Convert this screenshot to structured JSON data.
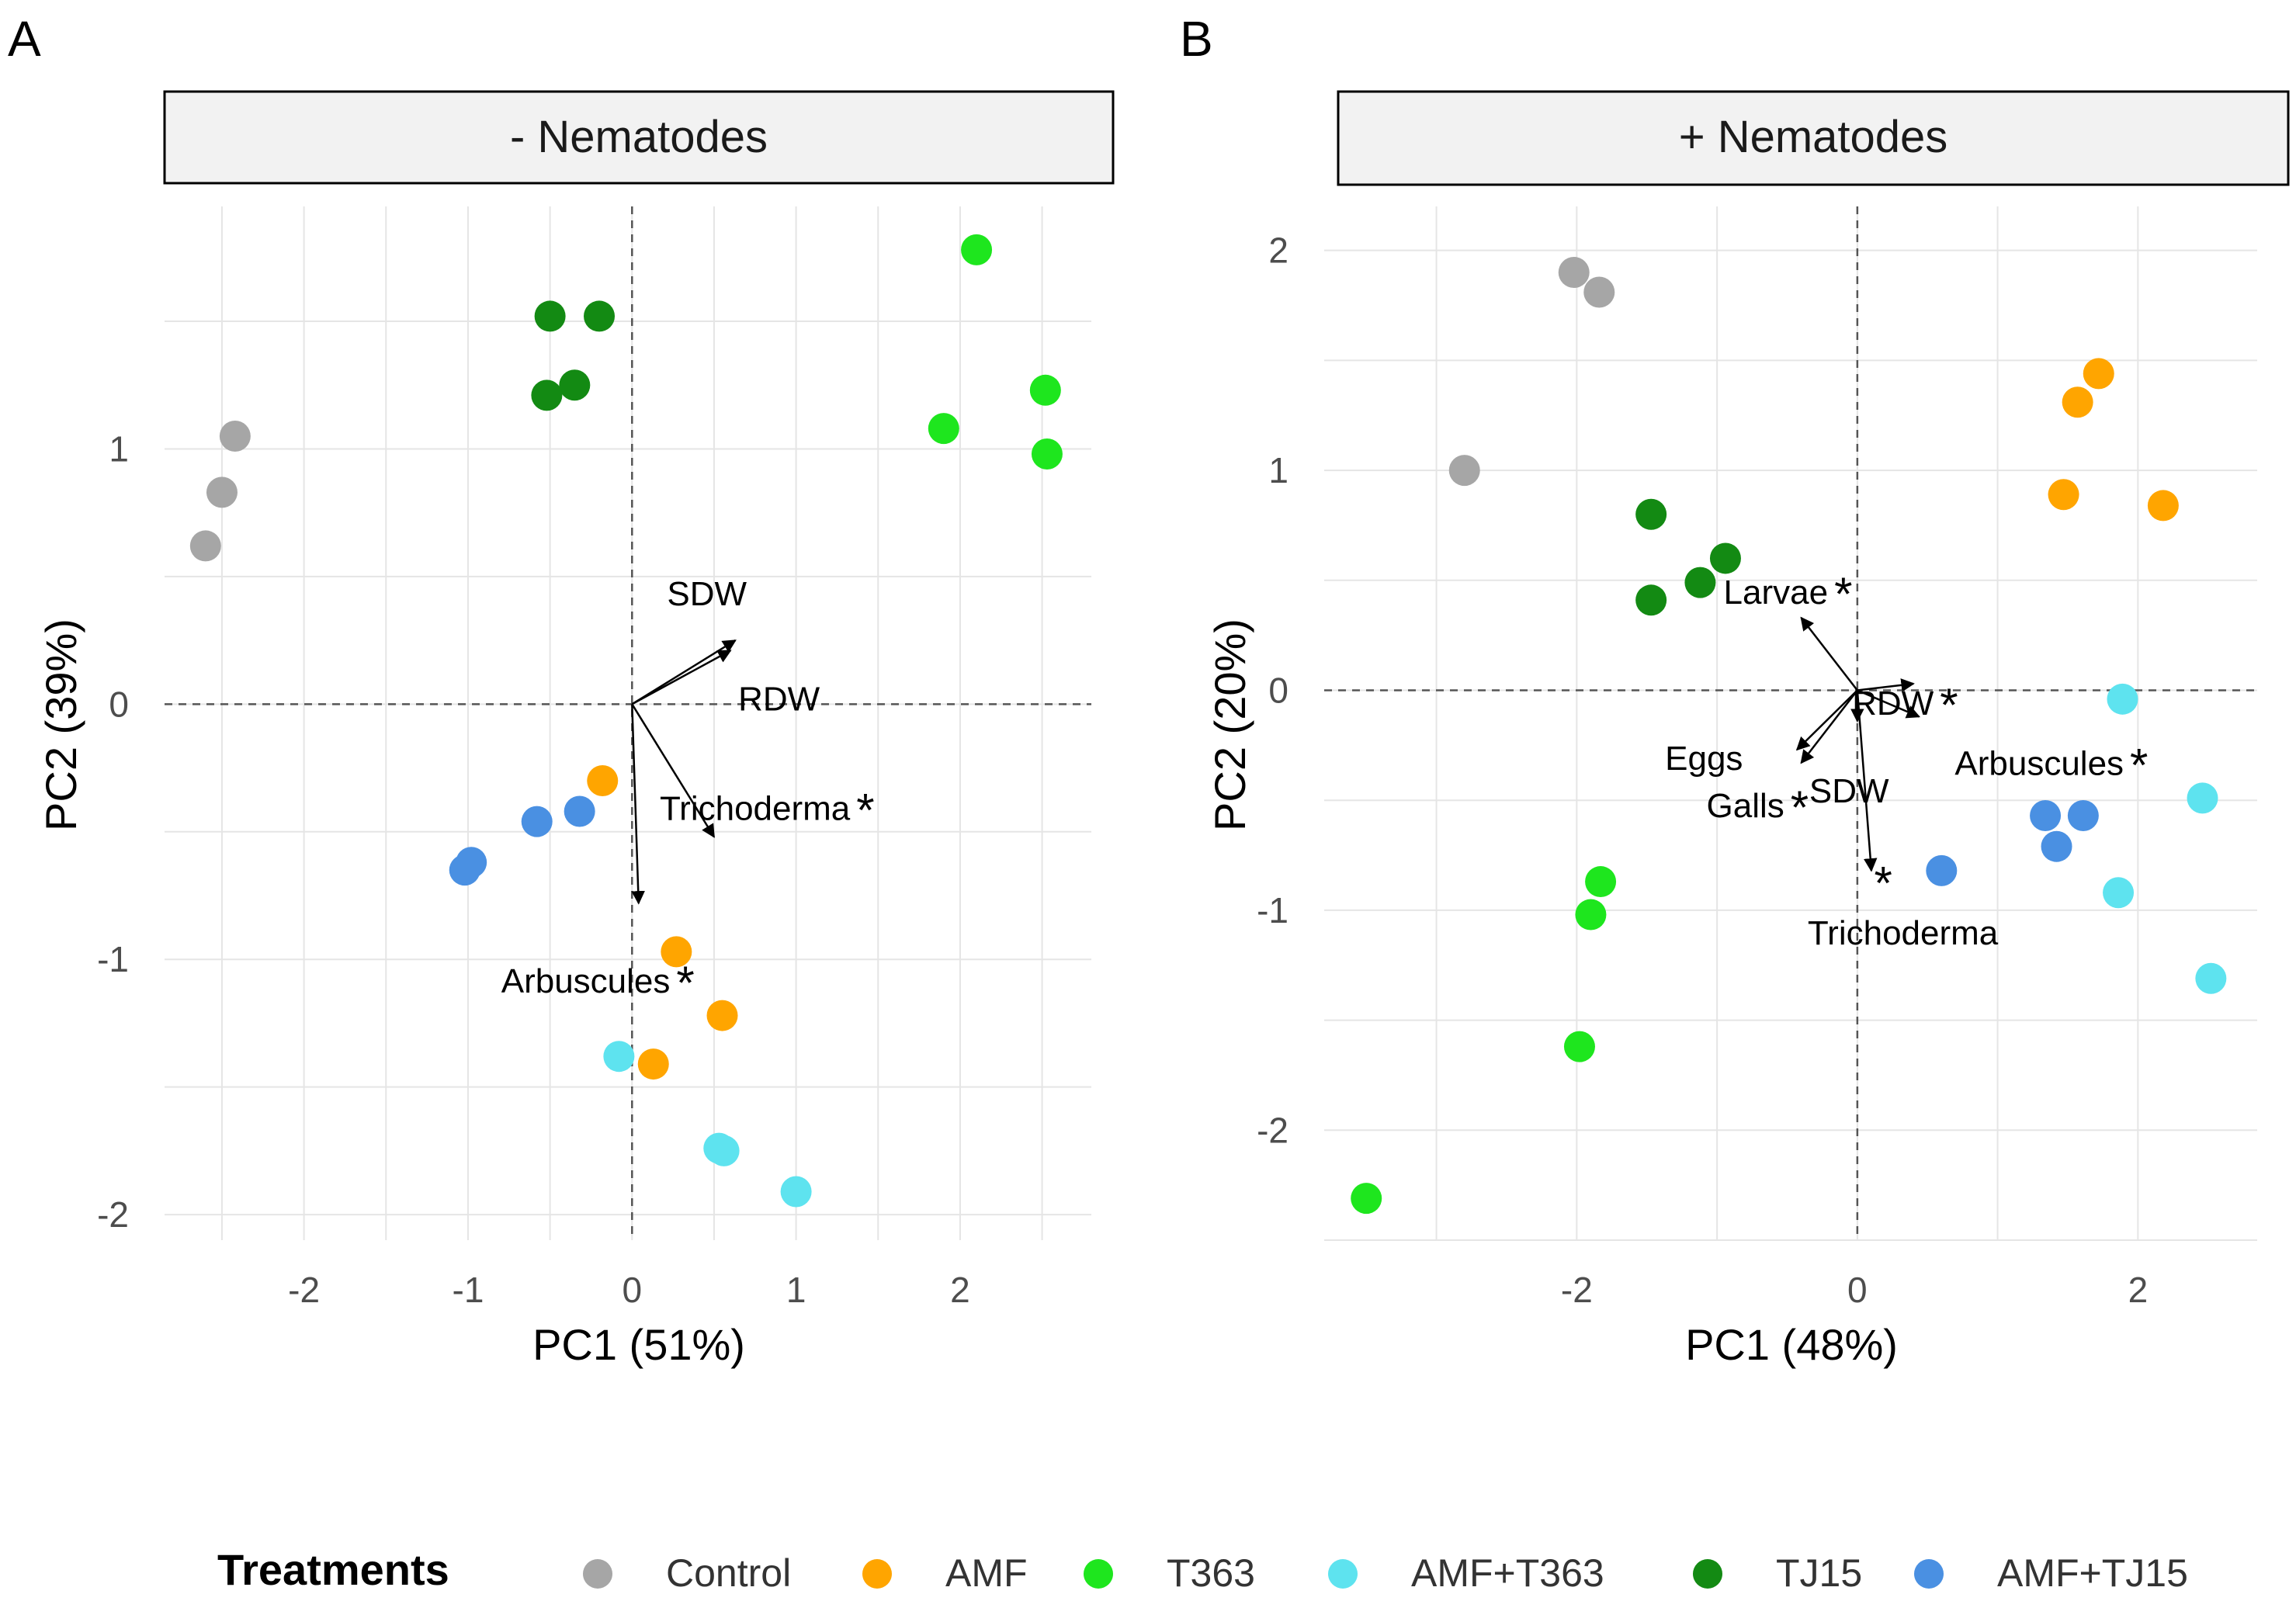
{
  "chart_data": [
    {
      "type": "scatter",
      "panel_letter": "A",
      "title": "- Nematodes",
      "xlabel": "PC1 (51%)",
      "ylabel": "PC2 (39%)",
      "xlim": [
        -2.85,
        2.8
      ],
      "ylim": [
        -2.1,
        1.95
      ],
      "xticks": [
        -2,
        -1,
        0,
        1,
        2
      ],
      "yticks": [
        -2,
        -1,
        0,
        1
      ],
      "grid": true,
      "series": [
        {
          "name": "Control",
          "points": [
            [
              -2.6,
              0.62
            ],
            [
              -2.5,
              0.83
            ],
            [
              -2.42,
              1.05
            ]
          ]
        },
        {
          "name": "AMF",
          "points": [
            [
              -0.18,
              -0.3
            ],
            [
              0.27,
              -0.97
            ],
            [
              0.55,
              -1.22
            ],
            [
              0.13,
              -1.41
            ]
          ]
        },
        {
          "name": "T363",
          "points": [
            [
              2.1,
              1.78
            ],
            [
              2.52,
              1.23
            ],
            [
              1.9,
              1.08
            ],
            [
              2.53,
              0.98
            ]
          ]
        },
        {
          "name": "AMF+T363",
          "points": [
            [
              -0.08,
              -1.38
            ],
            [
              0.53,
              -1.74
            ],
            [
              0.56,
              -1.75
            ],
            [
              1.0,
              -1.91
            ]
          ]
        },
        {
          "name": "TJ15",
          "points": [
            [
              -0.5,
              1.52
            ],
            [
              -0.2,
              1.52
            ],
            [
              -0.35,
              1.25
            ],
            [
              -0.52,
              1.21
            ]
          ]
        },
        {
          "name": "AMF+TJ15",
          "points": [
            [
              -0.32,
              -0.42
            ],
            [
              -0.58,
              -0.46
            ],
            [
              -0.98,
              -0.62
            ],
            [
              -1.02,
              -0.65
            ]
          ]
        }
      ],
      "vectors": [
        {
          "label": "SDW",
          "star": false,
          "x": 0.63,
          "y": 0.25
        },
        {
          "label": "RDW",
          "star": false,
          "x": 0.6,
          "y": 0.21
        },
        {
          "label": "Trichoderma",
          "star": true,
          "x": 0.5,
          "y": -0.52
        },
        {
          "label": "Arbuscules",
          "star": true,
          "x": 0.04,
          "y": -0.78
        }
      ]
    },
    {
      "type": "scatter",
      "panel_letter": "B",
      "title": "+ Nematodes",
      "xlabel": "PC1 (48%)",
      "ylabel": "PC2 (20%)",
      "xlim": [
        -3.8,
        2.85
      ],
      "ylim": [
        -2.5,
        2.2
      ],
      "xticks": [
        -2,
        0,
        2
      ],
      "yticks": [
        -2,
        -1,
        0,
        1,
        2
      ],
      "grid": true,
      "series": [
        {
          "name": "Control",
          "points": [
            [
              -2.02,
              1.9
            ],
            [
              -1.84,
              1.81
            ],
            [
              -2.8,
              1.0
            ]
          ]
        },
        {
          "name": "AMF",
          "points": [
            [
              1.72,
              1.44
            ],
            [
              1.57,
              1.31
            ],
            [
              1.47,
              0.89
            ],
            [
              2.18,
              0.84
            ]
          ]
        },
        {
          "name": "T363",
          "points": [
            [
              -1.83,
              -0.87
            ],
            [
              -1.9,
              -1.02
            ],
            [
              -1.98,
              -1.62
            ],
            [
              -3.5,
              -2.31
            ]
          ]
        },
        {
          "name": "AMF+T363",
          "points": [
            [
              1.89,
              -0.04
            ],
            [
              2.46,
              -0.49
            ],
            [
              1.86,
              -0.92
            ],
            [
              2.52,
              -1.31
            ]
          ]
        },
        {
          "name": "TJ15",
          "points": [
            [
              -1.47,
              0.8
            ],
            [
              -0.94,
              0.6
            ],
            [
              -1.12,
              0.49
            ],
            [
              -1.47,
              0.41
            ]
          ]
        },
        {
          "name": "AMF+TJ15",
          "points": [
            [
              1.34,
              -0.57
            ],
            [
              1.61,
              -0.57
            ],
            [
              1.42,
              -0.71
            ],
            [
              0.6,
              -0.82
            ]
          ]
        }
      ],
      "vectors": [
        {
          "label": "Larvae",
          "star": true,
          "x": -0.4,
          "y": 0.33
        },
        {
          "label": "RDW",
          "star": true,
          "x": 0.4,
          "y": 0.03
        },
        {
          "label": "Arbuscules",
          "star": true,
          "x": 0.44,
          "y": -0.12
        },
        {
          "label": "Eggs",
          "star": false,
          "x": -0.43,
          "y": -0.27
        },
        {
          "label": "Galls",
          "star": true,
          "x": -0.4,
          "y": -0.33
        },
        {
          "label": "SDW",
          "star": false,
          "x": 0.0,
          "y": -0.14
        },
        {
          "label": "Trichoderma",
          "star": false,
          "x": 0.1,
          "y": -0.82
        },
        {
          "label": "",
          "star": true,
          "x": 0.12,
          "y": -0.95
        }
      ]
    }
  ],
  "legend": {
    "title": "Treatments",
    "items": [
      {
        "name": "Control",
        "color": "#a6a6a6"
      },
      {
        "name": "AMF",
        "color": "#ffa500"
      },
      {
        "name": "T363",
        "color": "#1ee61e"
      },
      {
        "name": "AMF+T363",
        "color": "#5ee3ef"
      },
      {
        "name": "TJ15",
        "color": "#138a13"
      },
      {
        "name": "AMF+TJ15",
        "color": "#4a90e2"
      }
    ]
  },
  "colors": {
    "grid": "#e5e5e5",
    "strip_bg": "#f2f2f2",
    "axis_text": "#4d4d4d"
  }
}
